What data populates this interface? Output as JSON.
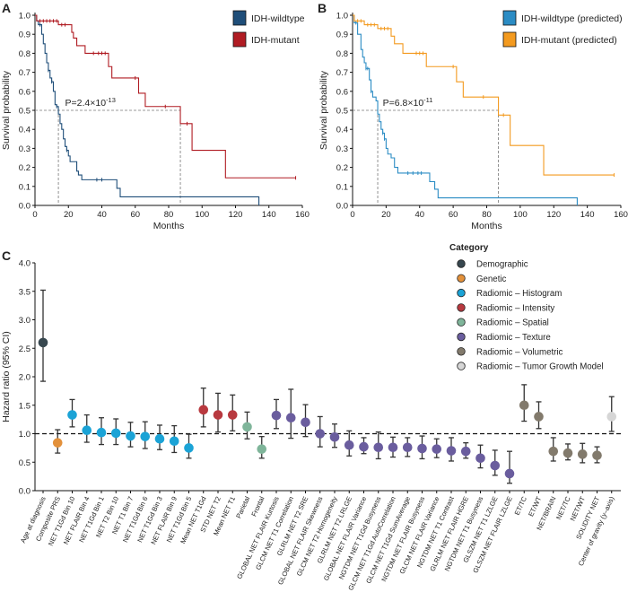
{
  "panels": {
    "a": "A",
    "b": "B",
    "c": "C"
  },
  "chart_data": [
    {
      "type": "line",
      "panel": "A",
      "xlabel": "Months",
      "ylabel": "Survival probability",
      "xlim": [
        0,
        160
      ],
      "ylim": [
        0,
        1
      ],
      "xticks": [
        0,
        20,
        40,
        60,
        80,
        100,
        120,
        140,
        160
      ],
      "yticks": [
        0.0,
        0.1,
        0.2,
        0.3,
        0.4,
        0.5,
        0.6,
        0.7,
        0.8,
        0.9,
        1.0
      ],
      "annotation": {
        "text": "P=2.4×10",
        "exponent": "-13"
      },
      "medians": [
        14,
        87
      ],
      "legend_position": "top-right",
      "series": [
        {
          "name": "IDH-wildtype",
          "color": "#1f4e79",
          "end": 134,
          "steps": [
            [
              0,
              1
            ],
            [
              1,
              0.97
            ],
            [
              2,
              0.95
            ],
            [
              4,
              0.9
            ],
            [
              5,
              0.85
            ],
            [
              6,
              0.8
            ],
            [
              7,
              0.75
            ],
            [
              8,
              0.71
            ],
            [
              9,
              0.67
            ],
            [
              10,
              0.65
            ],
            [
              11,
              0.6
            ],
            [
              12,
              0.53
            ],
            [
              13,
              0.52
            ],
            [
              14,
              0.48
            ],
            [
              15,
              0.43
            ],
            [
              16,
              0.4
            ],
            [
              17,
              0.35
            ],
            [
              18,
              0.31
            ],
            [
              19,
              0.29
            ],
            [
              20,
              0.26
            ],
            [
              21,
              0.23
            ],
            [
              25,
              0.18
            ],
            [
              26,
              0.16
            ],
            [
              28,
              0.135
            ],
            [
              49,
              0.09
            ],
            [
              51,
              0.045
            ]
          ],
          "censored": [
            [
              3,
              0.95
            ],
            [
              8,
              0.71
            ],
            [
              10,
              0.65
            ],
            [
              13,
              0.52
            ],
            [
              19,
              0.29
            ],
            [
              37,
              0.135
            ],
            [
              40,
              0.135
            ]
          ]
        },
        {
          "name": "IDH-mutant",
          "color": "#b01c23",
          "end": 156,
          "steps": [
            [
              0,
              1
            ],
            [
              1,
              0.97
            ],
            [
              14,
              0.95
            ],
            [
              22,
              0.91
            ],
            [
              23,
              0.88
            ],
            [
              25,
              0.84
            ],
            [
              30,
              0.8
            ],
            [
              44,
              0.73
            ],
            [
              46,
              0.67
            ],
            [
              62,
              0.59
            ],
            [
              66,
              0.52
            ],
            [
              87,
              0.43
            ],
            [
              94,
              0.29
            ],
            [
              114,
              0.145
            ]
          ],
          "censored": [
            [
              3,
              0.97
            ],
            [
              5,
              0.97
            ],
            [
              7,
              0.97
            ],
            [
              9,
              0.97
            ],
            [
              11,
              0.97
            ],
            [
              13,
              0.97
            ],
            [
              16,
              0.95
            ],
            [
              18,
              0.95
            ],
            [
              35,
              0.8
            ],
            [
              38,
              0.8
            ],
            [
              40,
              0.8
            ],
            [
              42,
              0.8
            ],
            [
              60,
              0.67
            ],
            [
              78,
              0.52
            ],
            [
              91,
              0.43
            ],
            [
              156,
              0.145
            ]
          ]
        }
      ]
    },
    {
      "type": "line",
      "panel": "B",
      "xlabel": "Months",
      "ylabel": "Survival probability",
      "xlim": [
        0,
        160
      ],
      "ylim": [
        0,
        1
      ],
      "xticks": [
        0,
        20,
        40,
        60,
        80,
        100,
        120,
        140,
        160
      ],
      "yticks": [
        0.0,
        0.1,
        0.2,
        0.3,
        0.4,
        0.5,
        0.6,
        0.7,
        0.8,
        0.9,
        1.0
      ],
      "annotation": {
        "text": "P=6.8×10",
        "exponent": "-11"
      },
      "medians": [
        15,
        87
      ],
      "legend_position": "top-right",
      "series": [
        {
          "name": "IDH-wildtype (predicted)",
          "color": "#2b8cc4",
          "end": 134,
          "steps": [
            [
              0,
              1
            ],
            [
              1,
              0.96
            ],
            [
              3,
              0.9
            ],
            [
              5,
              0.82
            ],
            [
              6,
              0.78
            ],
            [
              7,
              0.75
            ],
            [
              8,
              0.72
            ],
            [
              10,
              0.66
            ],
            [
              11,
              0.6
            ],
            [
              12,
              0.57
            ],
            [
              14,
              0.55
            ],
            [
              15,
              0.48
            ],
            [
              16,
              0.44
            ],
            [
              17,
              0.4
            ],
            [
              18,
              0.38
            ],
            [
              19,
              0.35
            ],
            [
              20,
              0.3
            ],
            [
              21,
              0.27
            ],
            [
              23,
              0.25
            ],
            [
              25,
              0.2
            ],
            [
              27,
              0.17
            ],
            [
              46,
              0.125
            ],
            [
              49,
              0.085
            ],
            [
              51,
              0.04
            ]
          ],
          "censored": [
            [
              2,
              0.96
            ],
            [
              8,
              0.72
            ],
            [
              9,
              0.72
            ],
            [
              11,
              0.6
            ],
            [
              18,
              0.38
            ],
            [
              19,
              0.35
            ],
            [
              33,
              0.17
            ],
            [
              36,
              0.17
            ],
            [
              39,
              0.17
            ],
            [
              41,
              0.17
            ]
          ]
        },
        {
          "name": "IDH-mutant (predicted)",
          "color": "#f39a1f",
          "end": 156,
          "steps": [
            [
              0,
              1
            ],
            [
              1,
              0.97
            ],
            [
              7,
              0.95
            ],
            [
              15,
              0.93
            ],
            [
              23,
              0.89
            ],
            [
              25,
              0.85
            ],
            [
              30,
              0.8
            ],
            [
              44,
              0.73
            ],
            [
              62,
              0.65
            ],
            [
              66,
              0.57
            ],
            [
              87,
              0.475
            ],
            [
              94,
              0.315
            ],
            [
              114,
              0.16
            ]
          ],
          "censored": [
            [
              3,
              0.97
            ],
            [
              5,
              0.97
            ],
            [
              9,
              0.95
            ],
            [
              11,
              0.95
            ],
            [
              13,
              0.95
            ],
            [
              17,
              0.93
            ],
            [
              19,
              0.93
            ],
            [
              21,
              0.93
            ],
            [
              38,
              0.8
            ],
            [
              40,
              0.8
            ],
            [
              42,
              0.8
            ],
            [
              60,
              0.73
            ],
            [
              78,
              0.57
            ],
            [
              90,
              0.475
            ],
            [
              156,
              0.16
            ]
          ]
        }
      ]
    },
    {
      "type": "scatter",
      "panel": "C",
      "ylabel": "Hazard ratio (95% CI)",
      "ylim": [
        0,
        4
      ],
      "yticks": [
        0.0,
        0.5,
        1.0,
        1.5,
        2.0,
        2.5,
        3.0,
        3.5,
        4.0
      ],
      "reference_line": 1.0,
      "legend_title": "Category",
      "legend_position": "top-right",
      "categories": [
        {
          "name": "Demographic",
          "color": "#37474f"
        },
        {
          "name": "Genetic",
          "color": "#e3913b"
        },
        {
          "name": "Radiomic – Histogram",
          "color": "#1ba3d6"
        },
        {
          "name": "Radiomic – Intensity",
          "color": "#b8393f"
        },
        {
          "name": "Radiomic – Spatial",
          "color": "#7fb59a"
        },
        {
          "name": "Radiomic – Texture",
          "color": "#6a5d9e"
        },
        {
          "name": "Radiomic – Volumetric",
          "color": "#827a6c"
        },
        {
          "name": "Radiomic – Tumor Growth Model",
          "color": "#d6d6d6"
        }
      ],
      "features": [
        {
          "label": "Age at diagnosis",
          "cat": 0,
          "hr": 2.6,
          "lo": 1.92,
          "hi": 3.52
        },
        {
          "label": "Composite PRS",
          "cat": 1,
          "hr": 0.84,
          "lo": 0.66,
          "hi": 1.07
        },
        {
          "label": "NET T1Gd Bin 10",
          "cat": 2,
          "hr": 1.33,
          "lo": 1.12,
          "hi": 1.6
        },
        {
          "label": "NET FLAIR Bin 4",
          "cat": 2,
          "hr": 1.06,
          "lo": 0.85,
          "hi": 1.33
        },
        {
          "label": "NET T1Gd Bin 1",
          "cat": 2,
          "hr": 1.02,
          "lo": 0.81,
          "hi": 1.28
        },
        {
          "label": "NET T2 Bin 10",
          "cat": 2,
          "hr": 1.01,
          "lo": 0.81,
          "hi": 1.26
        },
        {
          "label": "NET T1 Bin 7",
          "cat": 2,
          "hr": 0.96,
          "lo": 0.77,
          "hi": 1.2
        },
        {
          "label": "NET T1Gd Bin 6",
          "cat": 2,
          "hr": 0.95,
          "lo": 0.74,
          "hi": 1.21
        },
        {
          "label": "NET T1Gd Bin 3",
          "cat": 2,
          "hr": 0.91,
          "lo": 0.72,
          "hi": 1.15
        },
        {
          "label": "NET FLAIR Bin 9",
          "cat": 2,
          "hr": 0.87,
          "lo": 0.67,
          "hi": 1.14
        },
        {
          "label": "NET T1Gd Bin 5",
          "cat": 2,
          "hr": 0.75,
          "lo": 0.57,
          "hi": 0.99
        },
        {
          "label": "Mean NET T1Gd",
          "cat": 3,
          "hr": 1.42,
          "lo": 1.12,
          "hi": 1.8
        },
        {
          "label": "STD NET T2",
          "cat": 3,
          "hr": 1.33,
          "lo": 1.03,
          "hi": 1.71
        },
        {
          "label": "Mean NET T1",
          "cat": 3,
          "hr": 1.33,
          "lo": 1.05,
          "hi": 1.68
        },
        {
          "label": "Parietal",
          "cat": 4,
          "hr": 1.12,
          "lo": 0.91,
          "hi": 1.38
        },
        {
          "label": "Frontal",
          "cat": 4,
          "hr": 0.73,
          "lo": 0.57,
          "hi": 0.95
        },
        {
          "label": "GLOBAL NET FLAIR Kurtosis",
          "cat": 5,
          "hr": 1.32,
          "lo": 1.09,
          "hi": 1.6
        },
        {
          "label": "GLCM NET T1 Correlation",
          "cat": 5,
          "hr": 1.28,
          "lo": 0.92,
          "hi": 1.78
        },
        {
          "label": "GLRLM NET T2 SRE",
          "cat": 5,
          "hr": 1.2,
          "lo": 0.95,
          "hi": 1.51
        },
        {
          "label": "GLOBAL NET FLAIR Skewness",
          "cat": 5,
          "hr": 1.0,
          "lo": 0.77,
          "hi": 1.3
        },
        {
          "label": "GLCM NET T2 Homogeneity",
          "cat": 5,
          "hr": 0.94,
          "lo": 0.76,
          "hi": 1.17
        },
        {
          "label": "GLRLM NET T2 LRLGE",
          "cat": 5,
          "hr": 0.8,
          "lo": 0.61,
          "hi": 1.05
        },
        {
          "label": "GLOBAL NET FLAIR Variance",
          "cat": 5,
          "hr": 0.77,
          "lo": 0.65,
          "hi": 0.93
        },
        {
          "label": "NGTDM NET T1Gd Busyness",
          "cat": 5,
          "hr": 0.76,
          "lo": 0.56,
          "hi": 1.03
        },
        {
          "label": "GLCM NET T1Gd AutoCorrelation",
          "cat": 5,
          "hr": 0.76,
          "lo": 0.59,
          "hi": 0.94
        },
        {
          "label": "GLCM NET T1Gd SumAverage",
          "cat": 5,
          "hr": 0.76,
          "lo": 0.6,
          "hi": 0.93
        },
        {
          "label": "NGTDM NET FLAIR Busyness",
          "cat": 5,
          "hr": 0.74,
          "lo": 0.56,
          "hi": 0.96
        },
        {
          "label": "GLCM NET FLAIR Variance",
          "cat": 5,
          "hr": 0.73,
          "lo": 0.58,
          "hi": 0.91
        },
        {
          "label": "NGTDM NET T1 Contrast",
          "cat": 5,
          "hr": 0.7,
          "lo": 0.52,
          "hi": 0.93
        },
        {
          "label": "GLRLM NET FLAIR HGRE",
          "cat": 5,
          "hr": 0.69,
          "lo": 0.57,
          "hi": 0.84
        },
        {
          "label": "NGTDM NET T1 Busyness",
          "cat": 5,
          "hr": 0.57,
          "lo": 0.4,
          "hi": 0.8
        },
        {
          "label": "GLSZM NET T1 LZLGE",
          "cat": 5,
          "hr": 0.44,
          "lo": 0.27,
          "hi": 0.71
        },
        {
          "label": "GLSZM NET FLAIR LZLGE",
          "cat": 5,
          "hr": 0.3,
          "lo": 0.13,
          "hi": 0.69
        },
        {
          "label": "ET/TC",
          "cat": 6,
          "hr": 1.5,
          "lo": 1.22,
          "hi": 1.86
        },
        {
          "label": "ET/WT",
          "cat": 6,
          "hr": 1.3,
          "lo": 1.09,
          "hi": 1.56
        },
        {
          "label": "NET/BRAIN",
          "cat": 6,
          "hr": 0.69,
          "lo": 0.52,
          "hi": 0.93
        },
        {
          "label": "NET/TC",
          "cat": 6,
          "hr": 0.66,
          "lo": 0.54,
          "hi": 0.82
        },
        {
          "label": "NET/WT",
          "cat": 6,
          "hr": 0.64,
          "lo": 0.49,
          "hi": 0.83
        },
        {
          "label": "SOLIDITY NET",
          "cat": 6,
          "hr": 0.62,
          "lo": 0.49,
          "hi": 0.77
        },
        {
          "label": "Center of gravity (y–axis)",
          "cat": 7,
          "hr": 1.3,
          "lo": 1.04,
          "hi": 1.65
        }
      ]
    }
  ]
}
